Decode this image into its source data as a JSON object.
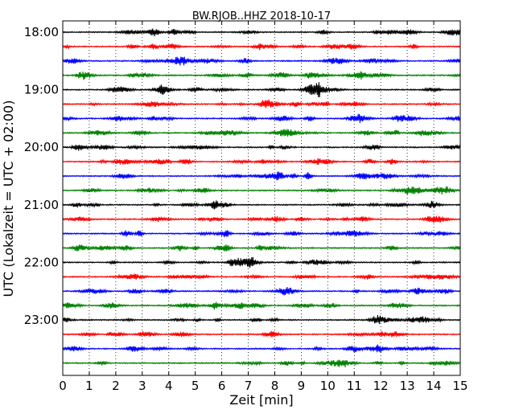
{
  "chart_data": {
    "type": "line",
    "title": "BW.RJOB..HHZ 2018-10-17",
    "xlabel": "Zeit  [min]",
    "ylabel": "UTC (Lokalzeit = UTC + 02:00)",
    "xlim": [
      0,
      15
    ],
    "x_ticks": [
      "0",
      "1",
      "2",
      "3",
      "4",
      "5",
      "6",
      "7",
      "8",
      "9",
      "10",
      "11",
      "12",
      "13",
      "14",
      "15"
    ],
    "y_tick_labels": [
      "18:00",
      "19:00",
      "20:00",
      "21:00",
      "22:00",
      "23:00"
    ],
    "grid": "vertical dotted at each minute",
    "trace_colors": [
      "#000000",
      "#ff0000",
      "#0000ff",
      "#008000"
    ],
    "series": [
      {
        "start": "18:00",
        "color": "#000000"
      },
      {
        "start": "18:15",
        "color": "#ff0000"
      },
      {
        "start": "18:30",
        "color": "#0000ff"
      },
      {
        "start": "18:45",
        "color": "#008000"
      },
      {
        "start": "19:00",
        "color": "#000000"
      },
      {
        "start": "19:15",
        "color": "#ff0000"
      },
      {
        "start": "19:30",
        "color": "#0000ff"
      },
      {
        "start": "19:45",
        "color": "#008000"
      },
      {
        "start": "20:00",
        "color": "#000000"
      },
      {
        "start": "20:15",
        "color": "#ff0000"
      },
      {
        "start": "20:30",
        "color": "#0000ff"
      },
      {
        "start": "20:45",
        "color": "#008000"
      },
      {
        "start": "21:00",
        "color": "#000000"
      },
      {
        "start": "21:15",
        "color": "#ff0000"
      },
      {
        "start": "21:30",
        "color": "#0000ff"
      },
      {
        "start": "21:45",
        "color": "#008000"
      },
      {
        "start": "22:00",
        "color": "#000000"
      },
      {
        "start": "22:15",
        "color": "#ff0000"
      },
      {
        "start": "22:30",
        "color": "#0000ff"
      },
      {
        "start": "22:45",
        "color": "#008000"
      },
      {
        "start": "23:00",
        "color": "#000000"
      },
      {
        "start": "23:15",
        "color": "#ff0000"
      },
      {
        "start": "23:30",
        "color": "#0000ff"
      },
      {
        "start": "23:45",
        "color": "#008000"
      }
    ]
  }
}
